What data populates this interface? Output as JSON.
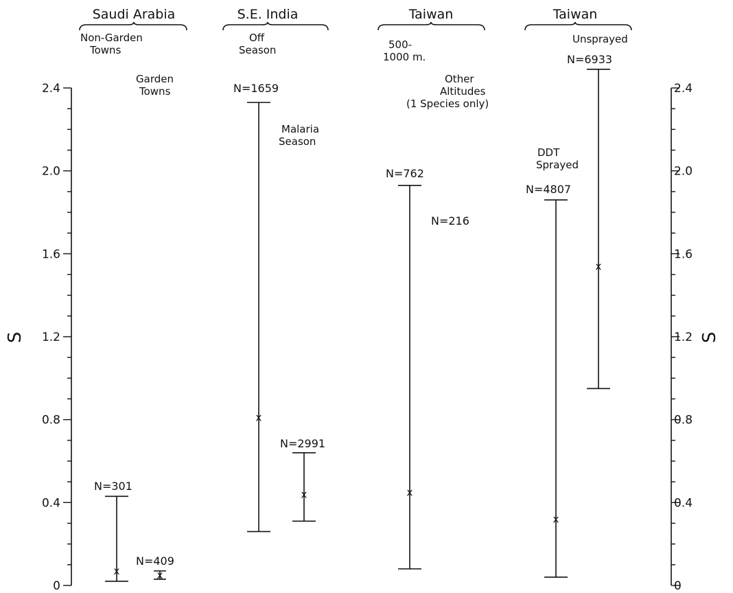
{
  "chart_data": {
    "type": "error-bar",
    "y_axis_label": "S",
    "ylim": [
      0,
      2.4
    ],
    "y_ticks": [
      "0",
      "0.4",
      "0.8",
      "1.2",
      "1.6",
      "2.0",
      "2.4"
    ],
    "y_ticks_right": [
      "0",
      "0.4",
      "0.8",
      "1.2",
      "1.6",
      "2.0",
      "2.4"
    ],
    "y_tick_values": [
      0,
      0.4,
      0.8,
      1.2,
      1.6,
      2.0,
      2.4
    ],
    "groups": [
      "Saudi Arabia",
      "S.E. India",
      "Taiwan",
      "Taiwan"
    ],
    "series": [
      {
        "group": "Saudi Arabia",
        "label_lines": [
          "Non-Garden",
          "Towns"
        ],
        "n_label": "N=301",
        "low": 0.02,
        "mean": 0.07,
        "high": 0.43
      },
      {
        "group": "Saudi Arabia",
        "label_lines": [
          "Garden",
          "Towns"
        ],
        "n_label": "N=409",
        "low": 0.03,
        "mean": 0.05,
        "high": 0.07
      },
      {
        "group": "S.E. India",
        "label_lines": [
          "Off",
          "Season"
        ],
        "n_label": "N=1659",
        "low": 0.26,
        "mean": 0.81,
        "high": 2.33
      },
      {
        "group": "S.E. India",
        "label_lines": [
          "Malaria",
          "Season"
        ],
        "n_label": "N=2991",
        "low": 0.31,
        "mean": 0.44,
        "high": 0.64
      },
      {
        "group": "Taiwan",
        "label_lines": [
          "500-",
          "1000 m."
        ],
        "n_label": "N=762",
        "low": 0.08,
        "mean": 0.45,
        "high": 1.93
      },
      {
        "group": "Taiwan",
        "label_lines": [
          "Other",
          "Altitudes",
          "(1 Species only)"
        ],
        "n_label": "N=216",
        "low": null,
        "mean": null,
        "high": null
      },
      {
        "group": "Taiwan",
        "label_lines": [
          "DDT",
          "Sprayed"
        ],
        "n_label": "N=4807",
        "low": 0.04,
        "mean": 0.32,
        "high": 1.86
      },
      {
        "group": "Taiwan",
        "label_lines": [
          "Unsprayed"
        ],
        "n_label": "N=6933",
        "low": 0.95,
        "mean": 1.54,
        "high": 2.49
      }
    ]
  }
}
